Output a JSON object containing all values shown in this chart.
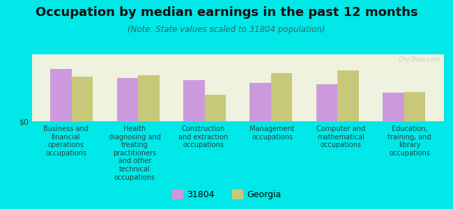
{
  "title": "Occupation by median earnings in the past 12 months",
  "subtitle": "(Note: State values scaled to 31804 population)",
  "categories": [
    "Business and\nfinancial\noperations\noccupations",
    "Health\ndiagnosing and\ntreating\npractitioners\nand other\ntechnical\noccupations",
    "Construction\nand extraction\noccupations",
    "Management\noccupations",
    "Computer and\nmathematical\noccupations",
    "Education,\ntraining, and\nlibrary\noccupations"
  ],
  "values_31804": [
    0.82,
    0.68,
    0.65,
    0.6,
    0.58,
    0.45
  ],
  "values_georgia": [
    0.7,
    0.72,
    0.42,
    0.75,
    0.8,
    0.46
  ],
  "color_31804": "#cc99dd",
  "color_georgia": "#c8c87a",
  "background_color": "#00e8e8",
  "chart_bg": "#eef2de",
  "ylabel": "$0",
  "legend_31804": "31804",
  "legend_georgia": "Georgia",
  "bar_width": 0.32,
  "title_fontsize": 13,
  "subtitle_fontsize": 8.5,
  "axis_label_fontsize": 7,
  "legend_fontsize": 9,
  "watermark": "City-Data.com"
}
